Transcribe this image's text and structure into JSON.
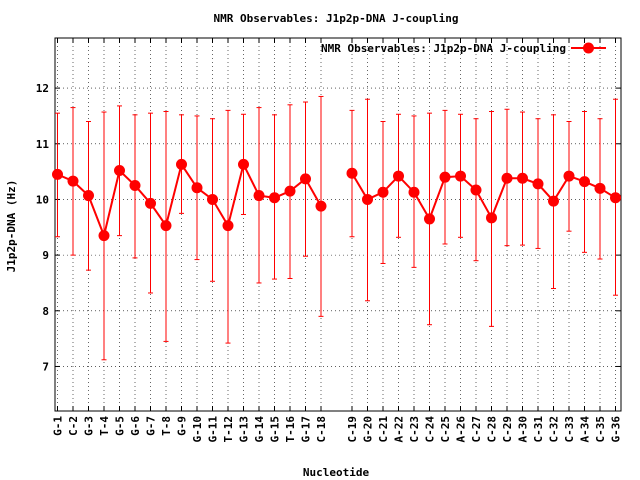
{
  "chart_data": {
    "type": "line",
    "title": "NMR Observables: J1p2p-DNA J-coupling",
    "xlabel": "Nucleotide",
    "ylabel": "J1p2p-DNA (Hz)",
    "ylim": [
      6.2,
      12.9
    ],
    "yticks": [
      7,
      8,
      9,
      10,
      11,
      12
    ],
    "grid": true,
    "legend_position": "top-right",
    "series": [
      {
        "name": "NMR Observables: J1p2p-DNA J-coupling",
        "color": "#ff0000",
        "marker": "circle",
        "segments": [
          {
            "categories": [
              "G-1",
              "C-2",
              "G-3",
              "T-4",
              "G-5",
              "G-6",
              "G-7",
              "T-8",
              "G-9",
              "G-10",
              "G-11",
              "T-12",
              "G-13",
              "G-14",
              "G-15",
              "T-16",
              "G-17",
              "C-18"
            ],
            "values": [
              10.45,
              10.33,
              10.07,
              9.35,
              10.52,
              10.25,
              9.93,
              9.53,
              10.63,
              10.21,
              10.0,
              9.53,
              10.63,
              10.07,
              10.03,
              10.15,
              10.37,
              9.88
            ],
            "err_low": [
              9.33,
              9.0,
              8.73,
              7.12,
              9.35,
              8.95,
              8.32,
              7.45,
              9.75,
              8.92,
              8.53,
              7.42,
              9.73,
              8.5,
              8.57,
              8.58,
              8.98,
              7.9
            ],
            "err_high": [
              11.55,
              11.65,
              11.4,
              11.57,
              11.68,
              11.52,
              11.55,
              11.58,
              11.52,
              11.5,
              11.45,
              11.6,
              11.53,
              11.65,
              11.52,
              11.7,
              11.75,
              11.85
            ]
          },
          {
            "categories": [
              "C-19",
              "G-20",
              "C-21",
              "A-22",
              "C-23",
              "C-24",
              "C-25",
              "A-26",
              "C-27",
              "C-28",
              "C-29",
              "A-30",
              "C-31",
              "C-32",
              "C-33",
              "A-34",
              "C-35",
              "G-36"
            ],
            "values": [
              10.47,
              10.0,
              10.13,
              10.42,
              10.13,
              9.65,
              10.4,
              10.42,
              10.17,
              9.67,
              10.38,
              10.38,
              10.28,
              9.97,
              10.42,
              10.32,
              10.2,
              10.03
            ],
            "err_low": [
              9.33,
              8.18,
              8.85,
              9.32,
              8.78,
              7.75,
              9.2,
              9.32,
              8.9,
              7.72,
              9.17,
              9.18,
              9.12,
              8.4,
              9.43,
              9.05,
              8.93,
              8.28
            ],
            "err_high": [
              11.6,
              11.8,
              11.4,
              11.53,
              11.5,
              11.55,
              11.6,
              11.53,
              11.45,
              11.58,
              11.62,
              11.57,
              11.45,
              11.52,
              11.4,
              11.58,
              11.45,
              11.8
            ]
          }
        ]
      }
    ]
  }
}
